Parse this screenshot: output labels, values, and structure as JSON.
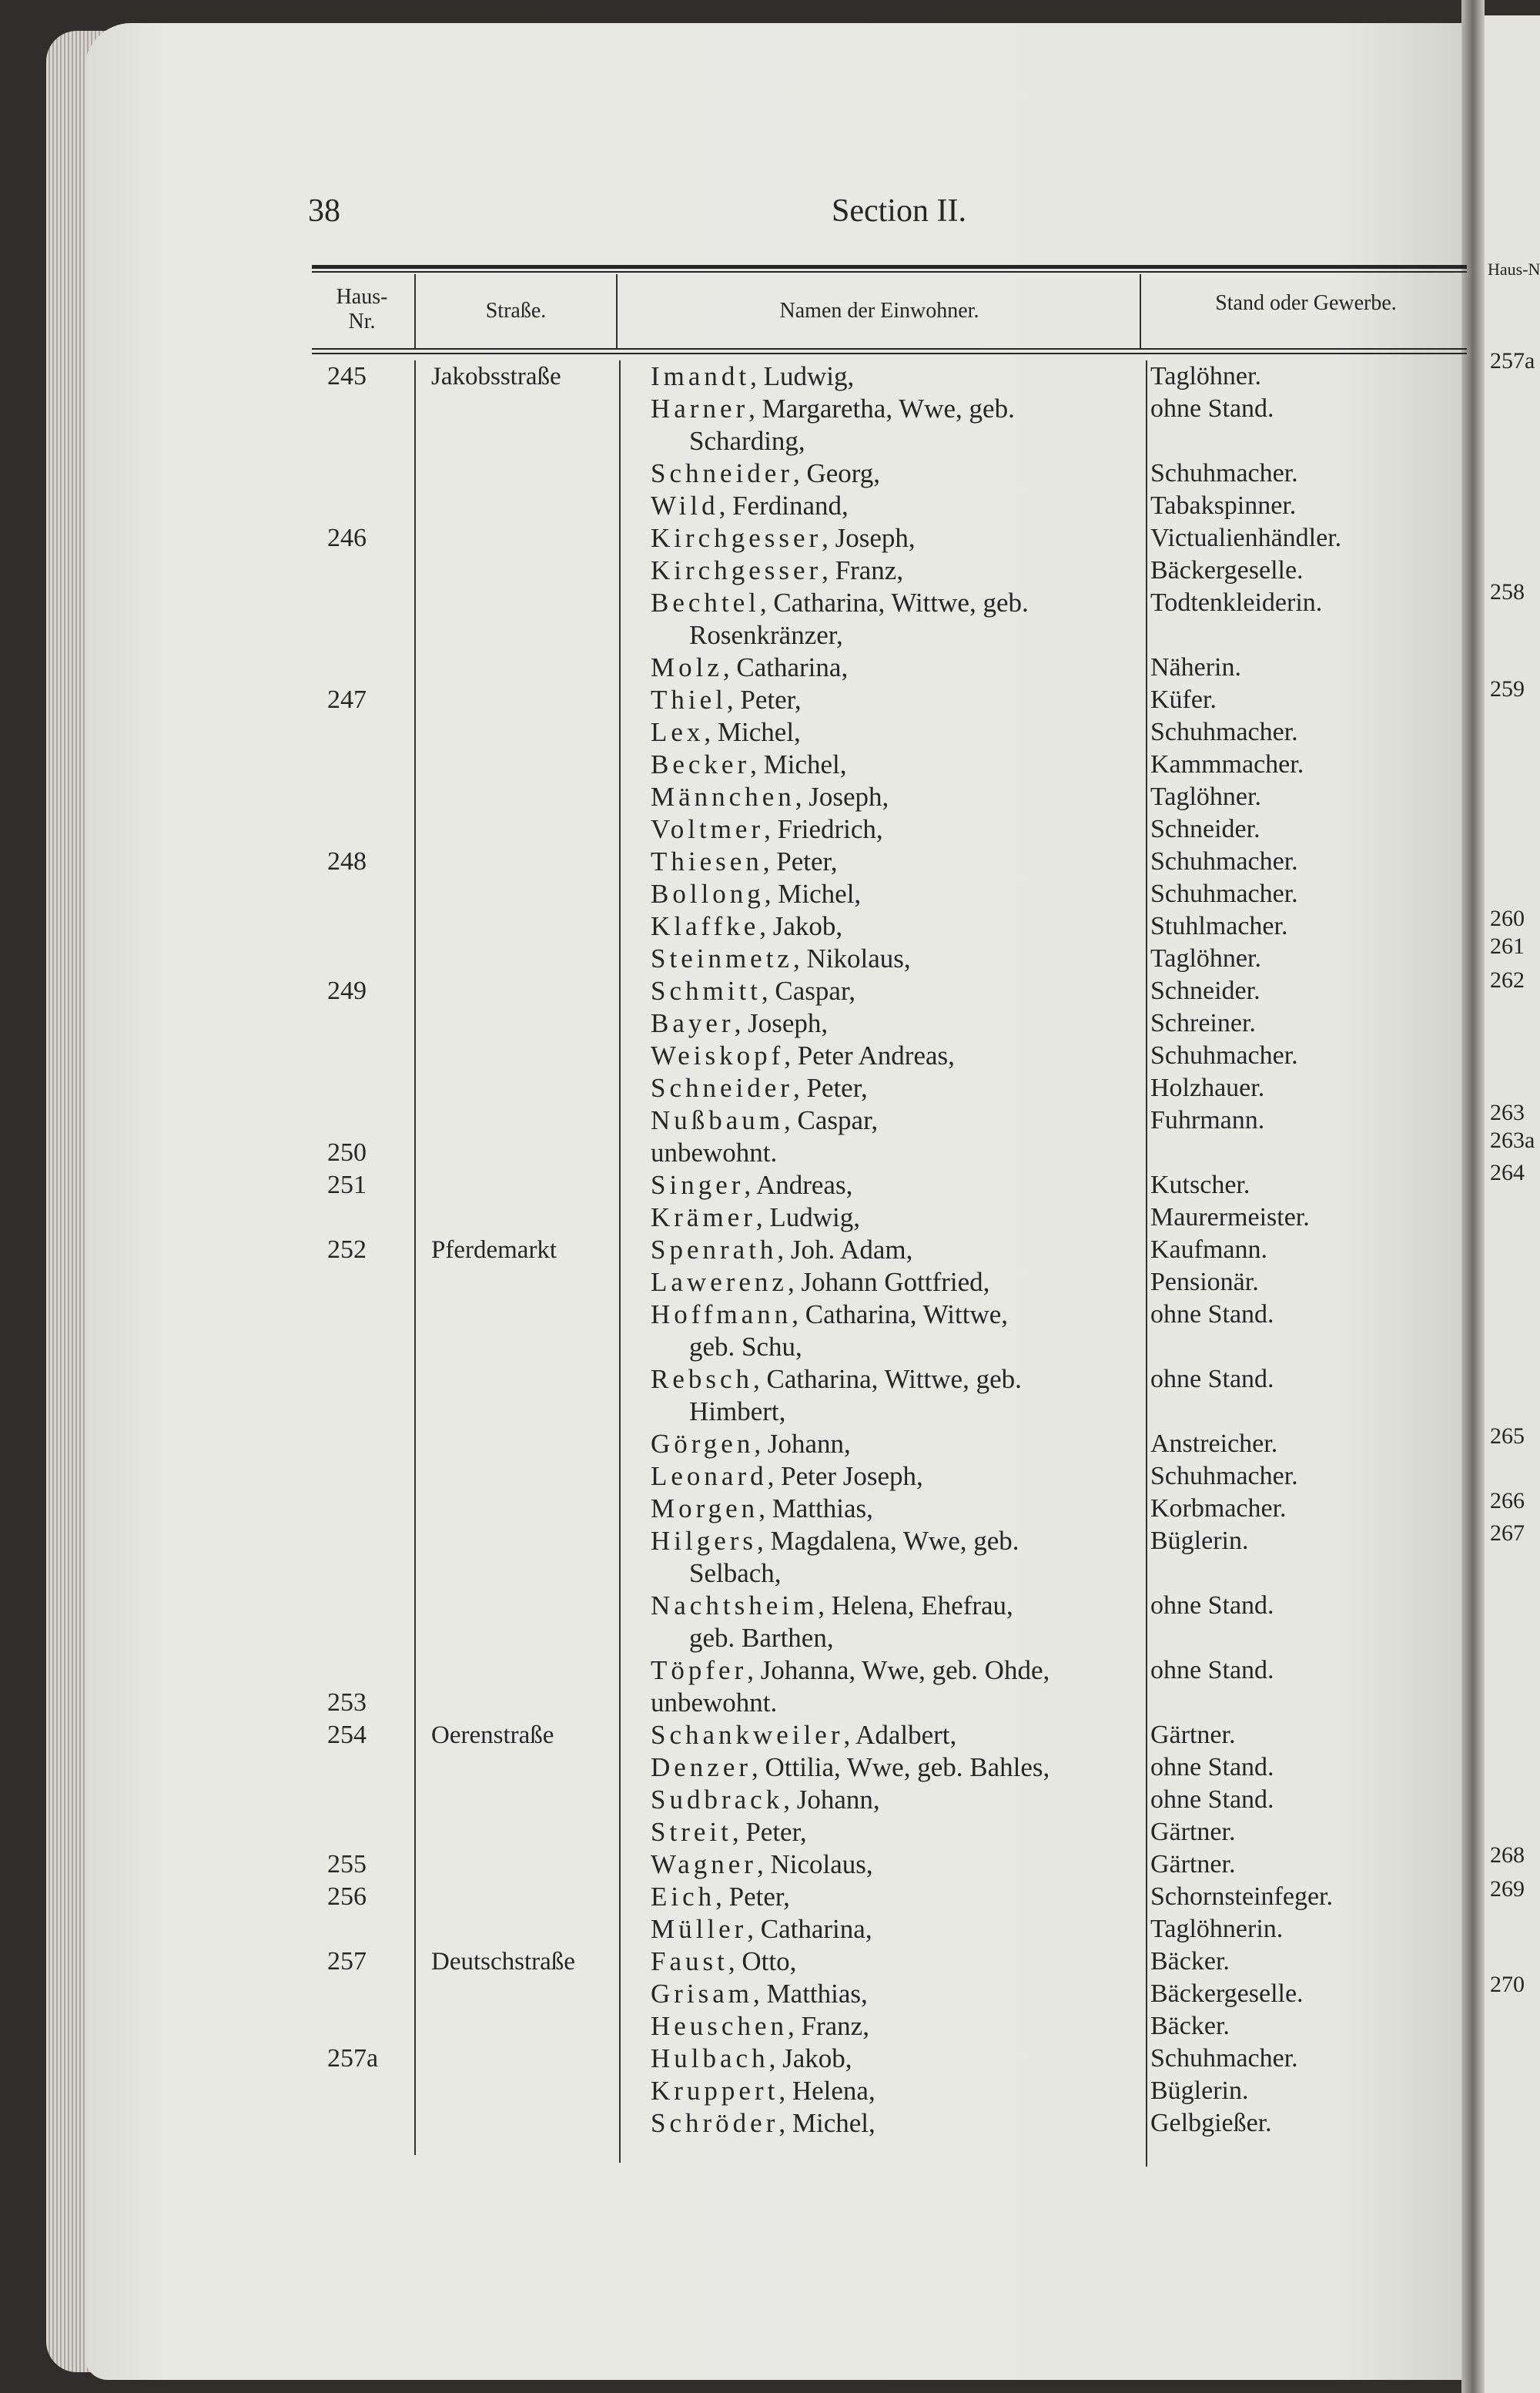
{
  "page": {
    "number": "38",
    "section": "Section II."
  },
  "header": {
    "nr_line1": "Haus-",
    "nr_line2": "Nr.",
    "street": "Straße.",
    "names": "Namen der Einwohner.",
    "stand": "Stand oder Gewerbe."
  },
  "rows": [
    {
      "nr": "245",
      "street": "Jakobsstraße",
      "surname": "Imandt",
      "given": ", Ludwig,",
      "stand": "Taglöhner."
    },
    {
      "surname": "Harner",
      "given": ", Margaretha, Wwe, geb.",
      "cont": "Scharding,",
      "stand": "ohne Stand."
    },
    {
      "surname": "Schneider",
      "given": ", Georg,",
      "stand": "Schuhmacher."
    },
    {
      "surname": "Wild",
      "given": ", Ferdinand,",
      "stand": "Tabakspinner."
    },
    {
      "nr": "246",
      "surname": "Kirchgesser",
      "given": ", Joseph,",
      "stand": "Victualienhändler."
    },
    {
      "surname": "Kirchgesser",
      "given": ", Franz,",
      "stand": "Bäckergeselle."
    },
    {
      "surname": "Bechtel",
      "given": ", Catharina, Wittwe, geb.",
      "cont": "Rosenkränzer,",
      "stand": "Todtenkleiderin."
    },
    {
      "surname": "Molz",
      "given": ", Catharina,",
      "stand": "Näherin."
    },
    {
      "nr": "247",
      "surname": "Thiel",
      "given": ", Peter,",
      "stand": "Küfer."
    },
    {
      "surname": "Lex",
      "given": ", Michel,",
      "stand": "Schuhmacher."
    },
    {
      "surname": "Becker",
      "given": ", Michel,",
      "stand": "Kammmacher."
    },
    {
      "surname": "Männchen",
      "given": ", Joseph,",
      "stand": "Taglöhner."
    },
    {
      "surname": "Voltmer",
      "given": ", Friedrich,",
      "stand": "Schneider."
    },
    {
      "nr": "248",
      "surname": "Thiesen",
      "given": ", Peter,",
      "stand": "Schuhmacher."
    },
    {
      "surname": "Bollong",
      "given": ", Michel,",
      "stand": "Schuhmacher."
    },
    {
      "surname": "Klaffke",
      "given": ", Jakob,",
      "stand": "Stuhlmacher."
    },
    {
      "surname": "Steinmetz",
      "given": ", Nikolaus,",
      "stand": "Taglöhner."
    },
    {
      "nr": "249",
      "surname": "Schmitt",
      "given": ", Caspar,",
      "stand": "Schneider."
    },
    {
      "surname": "Bayer",
      "given": ", Joseph,",
      "stand": "Schreiner."
    },
    {
      "surname": "Weiskopf",
      "given": ", Peter Andreas,",
      "stand": "Schuhmacher."
    },
    {
      "surname": "Schneider",
      "given": ", Peter,",
      "stand": "Holzhauer."
    },
    {
      "surname": "Nußbaum",
      "given": ", Caspar,",
      "stand": "Fuhrmann."
    },
    {
      "nr": "250",
      "surname": "",
      "given": "unbewohnt.",
      "stand": ""
    },
    {
      "nr": "251",
      "surname": "Singer",
      "given": ", Andreas,",
      "stand": "Kutscher."
    },
    {
      "surname": "Krämer",
      "given": ", Ludwig,",
      "stand": "Maurermeister."
    },
    {
      "nr": "252",
      "street": "Pferdemarkt",
      "surname": "Spenrath",
      "given": ", Joh. Adam,",
      "stand": "Kaufmann."
    },
    {
      "surname": "Lawerenz",
      "given": ", Johann Gottfried,",
      "stand": "Pensionär."
    },
    {
      "surname": "Hoffmann",
      "given": ", Catharina, Wittwe,",
      "cont": "geb. Schu,",
      "stand": "ohne Stand."
    },
    {
      "surname": "Rebsch",
      "given": ", Catharina, Wittwe, geb.",
      "cont": "Himbert,",
      "stand": "ohne Stand."
    },
    {
      "surname": "Görgen",
      "given": ", Johann,",
      "stand": "Anstreicher."
    },
    {
      "surname": "Leonard",
      "given": ", Peter Joseph,",
      "stand": "Schuhmacher."
    },
    {
      "surname": "Morgen",
      "given": ", Matthias,",
      "stand": "Korbmacher."
    },
    {
      "surname": "Hilgers",
      "given": ", Magdalena, Wwe, geb.",
      "cont": "Selbach,",
      "stand": "Büglerin."
    },
    {
      "surname": "Nachtsheim",
      "given": ", Helena, Ehefrau,",
      "cont": "geb. Barthen,",
      "stand": "ohne Stand."
    },
    {
      "surname": "Töpfer",
      "given": ", Johanna, Wwe, geb. Ohde,",
      "stand": "ohne Stand."
    },
    {
      "nr": "253",
      "surname": "",
      "given": "unbewohnt.",
      "stand": ""
    },
    {
      "nr": "254",
      "street": "Oerenstraße",
      "surname": "Schankweiler",
      "given": ", Adalbert,",
      "stand": "Gärtner."
    },
    {
      "surname": "Denzer",
      "given": ", Ottilia, Wwe, geb. Bahles,",
      "stand": "ohne Stand."
    },
    {
      "surname": "Sudbrack",
      "given": ", Johann,",
      "stand": "ohne Stand."
    },
    {
      "surname": "Streit",
      "given": ", Peter,",
      "stand": "Gärtner."
    },
    {
      "nr": "255",
      "surname": "Wagner",
      "given": ", Nicolaus,",
      "stand": "Gärtner."
    },
    {
      "nr": "256",
      "surname": "Eich",
      "given": ", Peter,",
      "stand": "Schornsteinfeger."
    },
    {
      "surname": "Müller",
      "given": ", Catharina,",
      "stand": "Taglöhnerin."
    },
    {
      "nr": "257",
      "street": "Deutschstraße",
      "surname": "Faust",
      "given": ", Otto,",
      "stand": "Bäcker."
    },
    {
      "surname": "Grisam",
      "given": ", Matthias,",
      "stand": "Bäckergeselle."
    },
    {
      "surname": "Heuschen",
      "given": ", Franz,",
      "stand": "Bäcker."
    },
    {
      "nr": "257a",
      "surname": "Hulbach",
      "given": ", Jakob,",
      "stand": "Schuhmacher."
    },
    {
      "surname": "Kruppert",
      "given": ", Helena,",
      "stand": "Büglerin."
    },
    {
      "surname": "Schröder",
      "given": ", Michel,",
      "stand": "Gelbgießer."
    }
  ],
  "next_page": {
    "header": "Haus-Nr.",
    "numbers": [
      "257a",
      "258",
      "259",
      "260",
      "261",
      "262",
      "263",
      "263a",
      "264",
      "265",
      "266",
      "267",
      "268",
      "269",
      "270"
    ]
  }
}
